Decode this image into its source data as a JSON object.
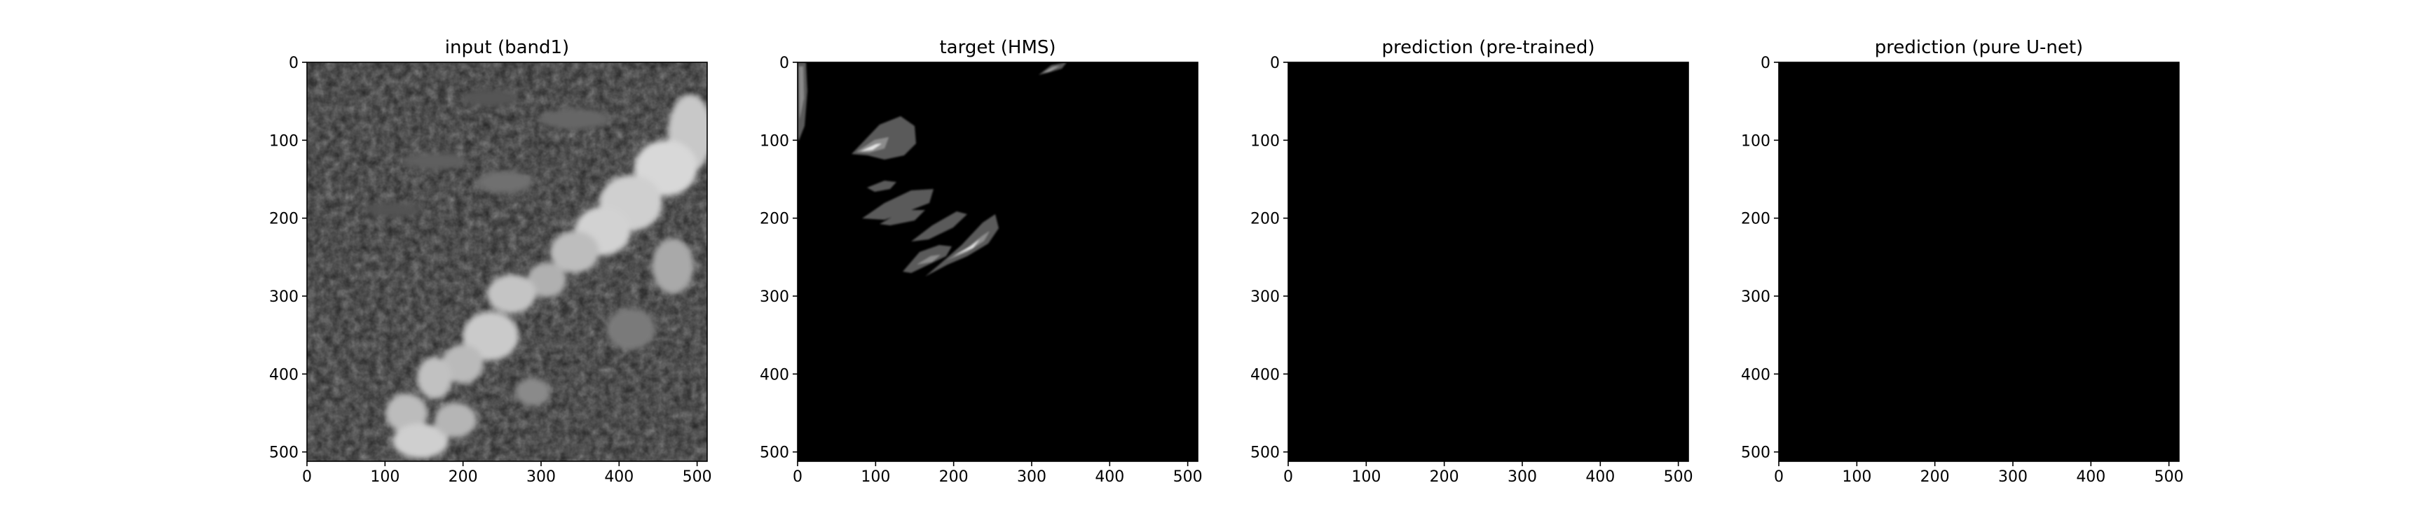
{
  "chart_data": [
    {
      "type": "heatmap",
      "title": "input (band1)",
      "image": "satellite-band1-cloud-field",
      "colormap": "gray",
      "xlim": [
        0,
        512
      ],
      "ylim": [
        512,
        0
      ],
      "xticks": [
        "0",
        "100",
        "200",
        "300",
        "400",
        "500"
      ],
      "yticks": [
        "0",
        "100",
        "200",
        "300",
        "400",
        "500"
      ]
    },
    {
      "type": "heatmap",
      "title": "target (HMS)",
      "image": "hms-smoke-mask",
      "colormap": "gray",
      "xlim": [
        0,
        512
      ],
      "ylim": [
        512,
        0
      ],
      "xticks": [
        "0",
        "100",
        "200",
        "300",
        "400",
        "500"
      ],
      "yticks": [
        "0",
        "100",
        "200",
        "300",
        "400",
        "500"
      ]
    },
    {
      "type": "heatmap",
      "title": "prediction (pre-trained)",
      "image": "empty-prediction",
      "colormap": "gray",
      "xlim": [
        0,
        512
      ],
      "ylim": [
        512,
        0
      ],
      "xticks": [
        "0",
        "100",
        "200",
        "300",
        "400",
        "500"
      ],
      "yticks": [
        "0",
        "100",
        "200",
        "300",
        "400",
        "500"
      ]
    },
    {
      "type": "heatmap",
      "title": "prediction (pure U-net)",
      "image": "empty-prediction",
      "colormap": "gray",
      "xlim": [
        0,
        512
      ],
      "ylim": [
        512,
        0
      ],
      "xticks": [
        "0",
        "100",
        "200",
        "300",
        "400",
        "500"
      ],
      "yticks": [
        "0",
        "100",
        "200",
        "300",
        "400",
        "500"
      ]
    }
  ],
  "colors": {
    "background": "#ffffff",
    "image_black": "#000000",
    "smoke_light": "#555555",
    "smoke_medium": "#8a8a8a",
    "smoke_heavy": "#e6e6e6",
    "cloud_dark": "#262626",
    "cloud_bright": "#d8d8d8"
  }
}
